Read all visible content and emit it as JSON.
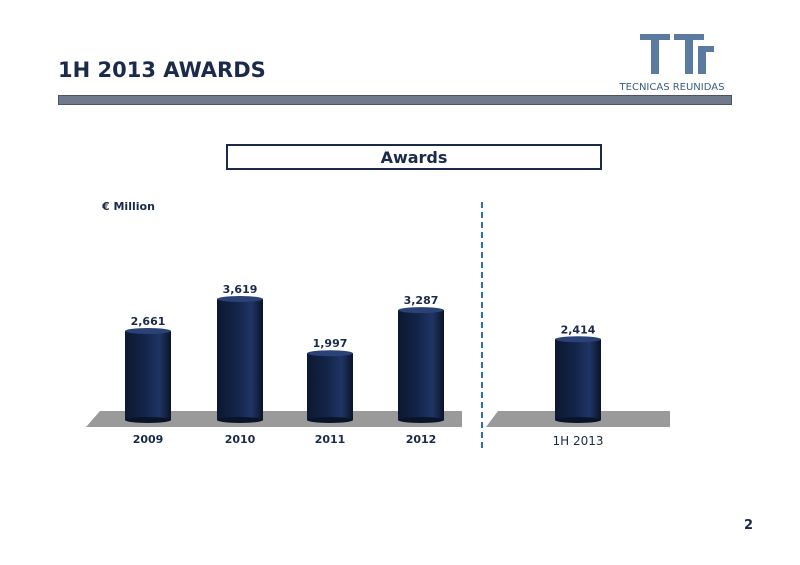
{
  "header": {
    "title": "1H 2013 AWARDS",
    "logo_text": "TECNICAS REUNIDAS"
  },
  "page_number": "2",
  "colors": {
    "bar": "#14254a",
    "floor": "#9a9a9a",
    "divider": "#2f6fb0",
    "text": "#1b2a4a"
  },
  "chart_data": {
    "type": "bar",
    "title": "Awards",
    "ylabel": "€ Million",
    "categories": [
      "2009",
      "2010",
      "2011",
      "2012",
      "1H 2013"
    ],
    "values": [
      2661,
      3619,
      1997,
      3287,
      2414
    ],
    "value_labels": [
      "2,661",
      "3,619",
      "1,997",
      "3,287",
      "2,414"
    ],
    "ylim": [
      0,
      4000
    ],
    "groups": [
      [
        "2009",
        "2010",
        "2011",
        "2012"
      ],
      [
        "1H 2013"
      ]
    ],
    "grid": false
  }
}
